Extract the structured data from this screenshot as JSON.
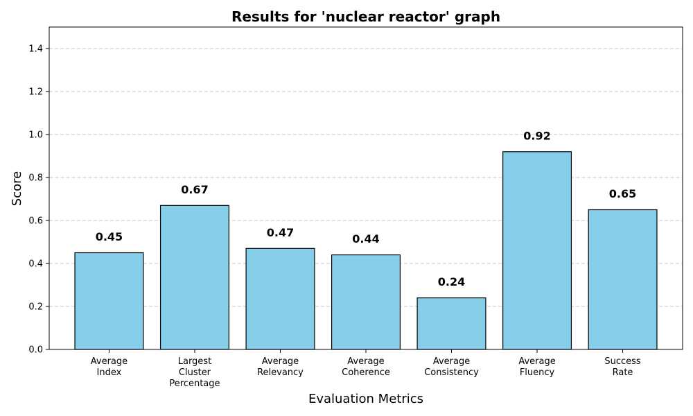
{
  "chart_data": {
    "type": "bar",
    "title": "Results for 'nuclear reactor' graph",
    "xlabel": "Evaluation Metrics",
    "ylabel": "Score",
    "ylim": [
      0,
      1.5
    ],
    "yticks": [
      0.0,
      0.2,
      0.4,
      0.6,
      0.8,
      1.0,
      1.2,
      1.4
    ],
    "ytick_labels": [
      "0.0",
      "0.2",
      "0.4",
      "0.6",
      "0.8",
      "1.0",
      "1.2",
      "1.4"
    ],
    "grid": "y-dashed",
    "bar_color": "#87CEEB",
    "edge_color": "#000000",
    "categories": [
      [
        "Average",
        "Index"
      ],
      [
        "Largest",
        "Cluster",
        "Percentage"
      ],
      [
        "Average",
        "Relevancy"
      ],
      [
        "Average",
        "Coherence"
      ],
      [
        "Average",
        "Consistency"
      ],
      [
        "Average",
        "Fluency"
      ],
      [
        "Success",
        "Rate"
      ]
    ],
    "values": [
      0.45,
      0.67,
      0.47,
      0.44,
      0.24,
      0.92,
      0.65
    ],
    "value_labels": [
      "0.45",
      "0.67",
      "0.47",
      "0.44",
      "0.24",
      "0.92",
      "0.65"
    ]
  }
}
